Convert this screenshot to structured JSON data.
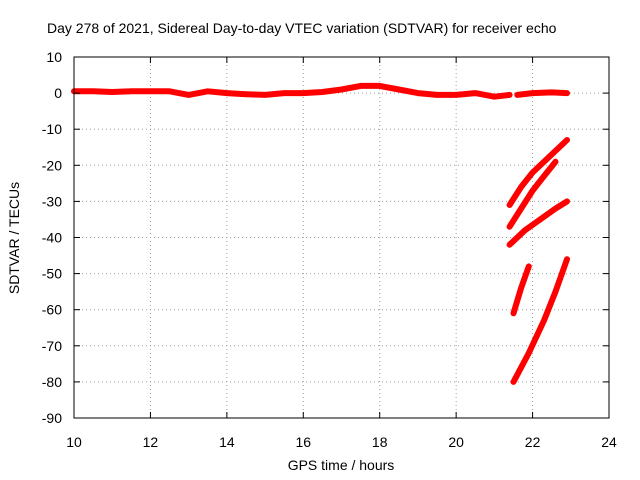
{
  "chart_data": {
    "type": "line",
    "title": "Day 278 of 2021, Sidereal Day-to-day VTEC variation (SDTVAR) for receiver echo",
    "xlabel": "GPS time / hours",
    "ylabel": "SDTVAR / TECUs",
    "xlim": [
      10,
      24
    ],
    "ylim": [
      -90,
      10
    ],
    "xticks": [
      10,
      12,
      14,
      16,
      18,
      20,
      22,
      24
    ],
    "yticks": [
      10,
      0,
      -10,
      -20,
      -30,
      -40,
      -50,
      -60,
      -70,
      -80,
      -90
    ],
    "grid": true,
    "series_color": "#ff0000",
    "series": [
      {
        "x": [
          10.0,
          10.5,
          11.0,
          11.5,
          12.0,
          12.5,
          13.0,
          13.5,
          14.0,
          14.5,
          15.0,
          15.5,
          16.0,
          16.5,
          17.0,
          17.5,
          18.0,
          18.5,
          19.0,
          19.5,
          20.0,
          20.5,
          21.0,
          21.4
        ],
        "y": [
          0.5,
          0.5,
          0.3,
          0.5,
          0.5,
          0.5,
          -0.5,
          0.5,
          0,
          -0.3,
          -0.5,
          0,
          0,
          0.3,
          1.0,
          2.0,
          2.0,
          1.0,
          0,
          -0.5,
          -0.5,
          0,
          -1.0,
          -0.5
        ]
      },
      {
        "x": [
          21.6,
          22.0,
          22.5,
          22.9
        ],
        "y": [
          -0.5,
          0,
          0.2,
          0
        ]
      },
      {
        "x": [
          21.4,
          21.7,
          22.0,
          22.4,
          22.9
        ],
        "y": [
          -31,
          -26,
          -22,
          -18,
          -13
        ]
      },
      {
        "x": [
          21.4,
          21.7,
          22.0,
          22.3,
          22.6
        ],
        "y": [
          -37,
          -32,
          -27,
          -23,
          -19
        ]
      },
      {
        "x": [
          21.4,
          21.8,
          22.2,
          22.6,
          22.9
        ],
        "y": [
          -42,
          -38,
          -35,
          -32,
          -30
        ]
      },
      {
        "x": [
          21.5,
          21.7,
          21.9
        ],
        "y": [
          -61,
          -54,
          -48
        ]
      },
      {
        "x": [
          21.5,
          21.9,
          22.3,
          22.6,
          22.9
        ],
        "y": [
          -80,
          -72,
          -63,
          -55,
          -46
        ]
      }
    ]
  }
}
